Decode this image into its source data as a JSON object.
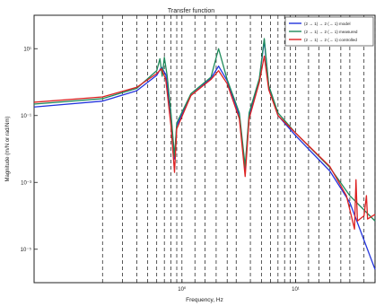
{
  "chart_data": {
    "type": "line",
    "title": "Transfer function",
    "xlabel": "Frequency, Hz",
    "ylabel": "Magnitude (m/N or rad/Nm)",
    "x_scale": "log",
    "y_scale": "log",
    "xlim": [
      0.05,
      50
    ],
    "ylim": [
      1e-06,
      100
    ],
    "grid": "vertical dashed lines only",
    "legend_position": "top-right",
    "x_tick_labels": [
      {
        "value": 1,
        "label": "10⁰"
      },
      {
        "value": 10,
        "label": "10¹"
      }
    ],
    "y_tick_labels": [
      {
        "value": 10,
        "label": "10¹"
      },
      {
        "value": 0.1,
        "label": "10⁻¹"
      },
      {
        "value": 0.001,
        "label": "10⁻³"
      },
      {
        "value": 1e-05,
        "label": "10⁻⁵"
      }
    ],
    "vertical_grid_x": [
      0.2,
      0.3,
      0.4,
      0.5,
      0.6,
      0.7,
      0.8,
      0.9,
      1,
      1.3,
      1.6,
      2,
      2.5,
      3,
      4,
      5,
      6,
      7,
      8,
      9,
      10,
      13,
      16,
      20,
      25,
      30,
      40,
      50
    ],
    "series": [
      {
        "name": "(2 → 1)  →  2 (→ 1) model",
        "color": "#2233dd",
        "points": [
          [
            0.05,
            0.18
          ],
          [
            0.2,
            0.27
          ],
          [
            0.4,
            0.55
          ],
          [
            0.6,
            1.6
          ],
          [
            0.66,
            2.8
          ],
          [
            0.72,
            1.7
          ],
          [
            0.8,
            0.1
          ],
          [
            0.86,
            0.005
          ],
          [
            0.9,
            0.05
          ],
          [
            1.2,
            0.4
          ],
          [
            1.8,
            1.3
          ],
          [
            2.1,
            3.0
          ],
          [
            2.5,
            1.1
          ],
          [
            3.2,
            0.1
          ],
          [
            3.6,
            0.0025
          ],
          [
            3.9,
            0.1
          ],
          [
            4.8,
            1.2
          ],
          [
            5.3,
            18
          ],
          [
            5.8,
            0.7
          ],
          [
            7,
            0.1
          ],
          [
            10,
            0.025
          ],
          [
            20,
            0.0022
          ],
          [
            30,
            0.00025
          ],
          [
            50,
            2.5e-06
          ]
        ]
      },
      {
        "name": "(2 → 1)  →  2 (→ 1) measured",
        "color": "#1e8a5a",
        "points": [
          [
            0.05,
            0.22
          ],
          [
            0.2,
            0.32
          ],
          [
            0.4,
            0.65
          ],
          [
            0.6,
            2.2
          ],
          [
            0.64,
            5.0
          ],
          [
            0.67,
            1.5
          ],
          [
            0.7,
            5.5
          ],
          [
            0.74,
            1.6
          ],
          [
            0.8,
            0.12
          ],
          [
            0.86,
            0.006
          ],
          [
            0.9,
            0.06
          ],
          [
            1.2,
            0.45
          ],
          [
            1.8,
            1.4
          ],
          [
            2.1,
            10
          ],
          [
            2.5,
            1.2
          ],
          [
            3.2,
            0.12
          ],
          [
            3.6,
            0.003
          ],
          [
            3.9,
            0.12
          ],
          [
            4.8,
            1.3
          ],
          [
            5.3,
            20
          ],
          [
            5.8,
            0.8
          ],
          [
            7,
            0.12
          ],
          [
            10,
            0.03
          ],
          [
            20,
            0.0028
          ],
          [
            30,
            0.0004
          ],
          [
            50,
            7e-05
          ]
        ]
      },
      {
        "name": "(2 → 1)  →  2 (→ 1) controlled",
        "color": "#dd2222",
        "points": [
          [
            0.05,
            0.25
          ],
          [
            0.2,
            0.36
          ],
          [
            0.4,
            0.7
          ],
          [
            0.6,
            1.8
          ],
          [
            0.66,
            2.5
          ],
          [
            0.72,
            1.2
          ],
          [
            0.8,
            0.05
          ],
          [
            0.86,
            0.002
          ],
          [
            0.9,
            0.04
          ],
          [
            1.2,
            0.4
          ],
          [
            1.8,
            1.2
          ],
          [
            2.1,
            2.2
          ],
          [
            2.5,
            0.9
          ],
          [
            3.2,
            0.08
          ],
          [
            3.6,
            0.0015
          ],
          [
            3.9,
            0.08
          ],
          [
            4.8,
            1.0
          ],
          [
            5.3,
            6
          ],
          [
            5.8,
            0.6
          ],
          [
            7,
            0.1
          ],
          [
            10,
            0.03
          ],
          [
            20,
            0.003
          ],
          [
            28,
            0.0004
          ],
          [
            33,
            4e-05
          ],
          [
            34,
            0.0012
          ],
          [
            35,
            7e-05
          ],
          [
            40,
            0.0001
          ],
          [
            42,
            0.0004
          ],
          [
            43,
            8e-05
          ],
          [
            50,
            0.00011
          ]
        ]
      }
    ]
  }
}
